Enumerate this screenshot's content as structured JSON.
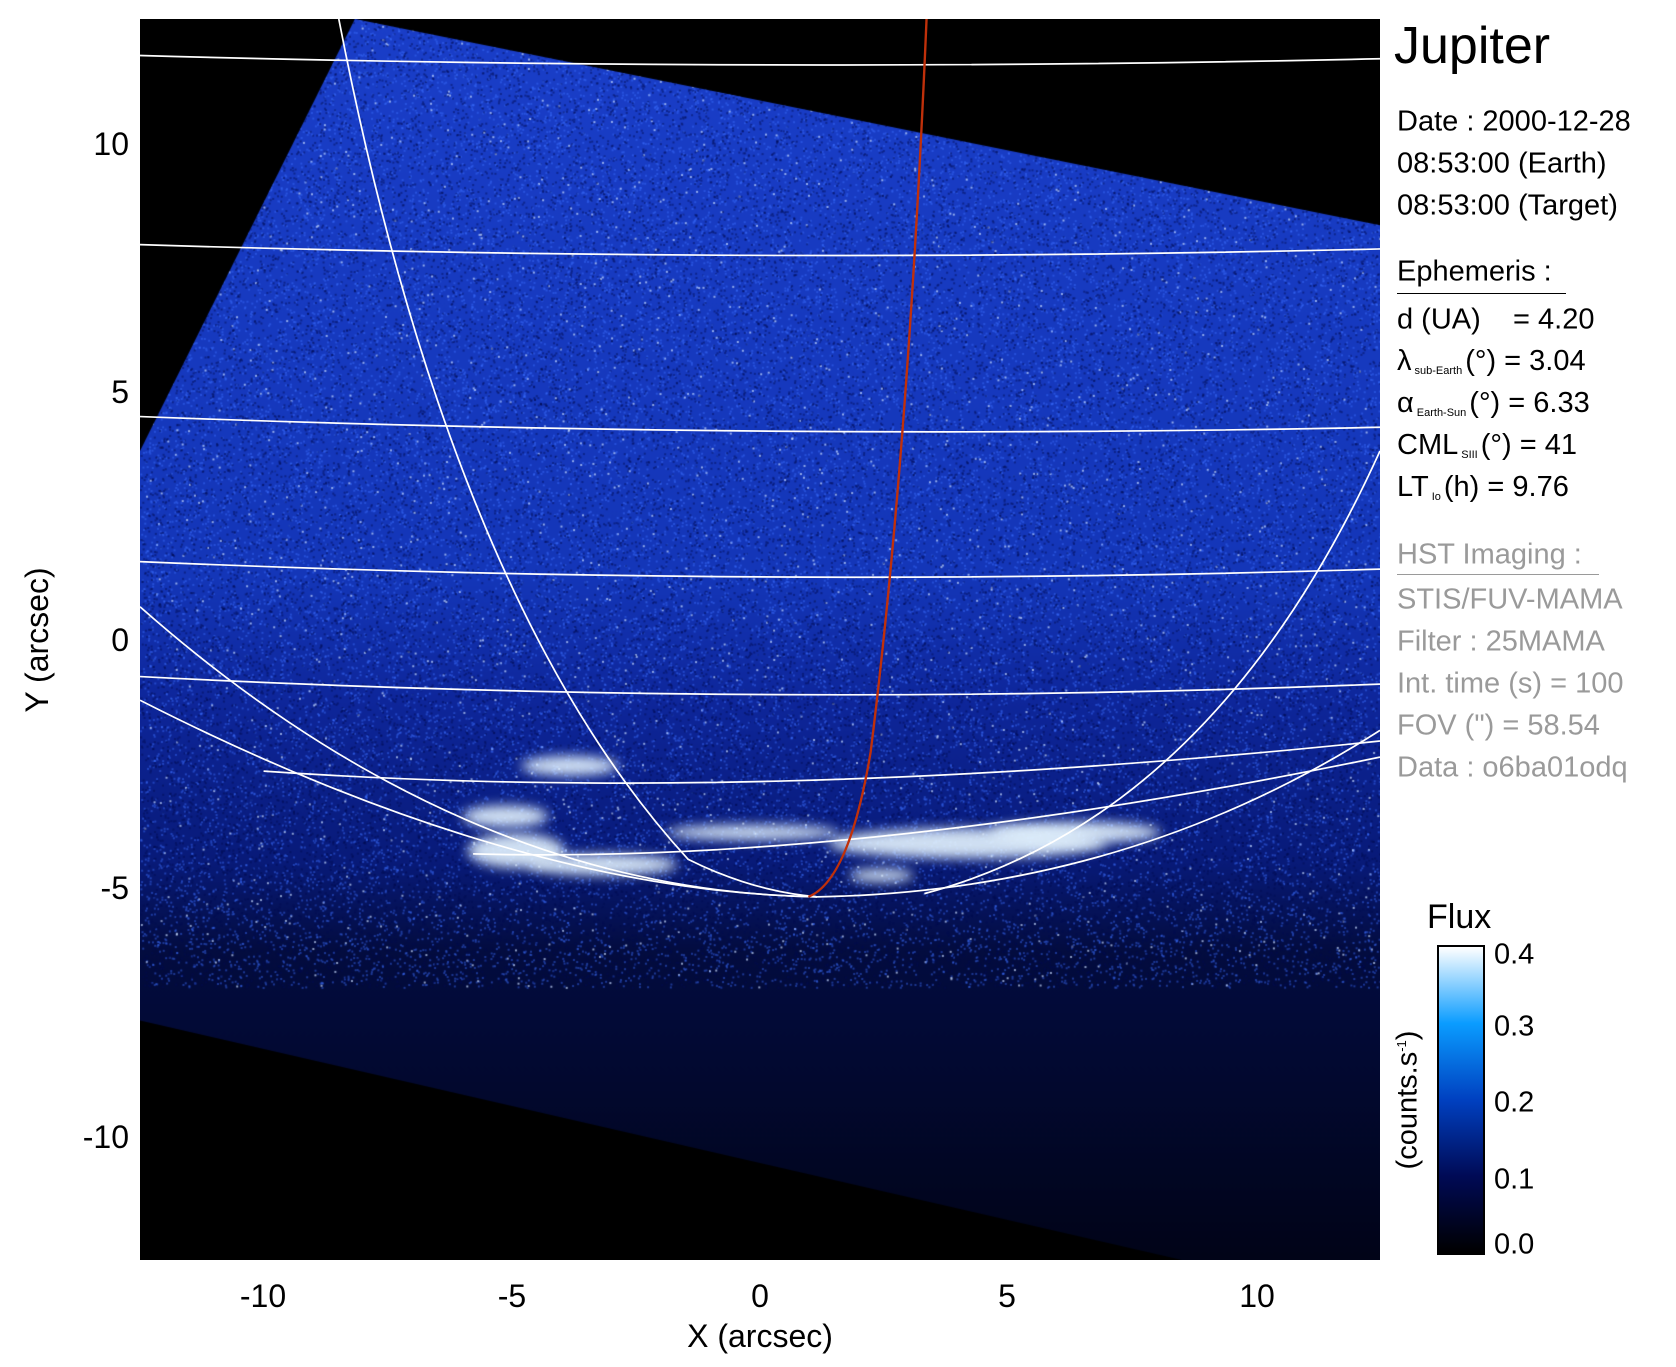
{
  "chart_data": {
    "type": "heatmap",
    "title": "Jupiter",
    "xlabel": "X (arcsec)",
    "ylabel": "Y (arcsec)",
    "xlim": [
      -12.5,
      12.5
    ],
    "ylim": [
      -12.5,
      12.5
    ],
    "xticks": [
      "-10",
      "-5",
      "0",
      "5",
      "10"
    ],
    "yticks": [
      "10",
      "5",
      "0",
      "-5",
      "-10"
    ],
    "grid": "planetographic latitude/longitude grid overlay (white)",
    "highlight_line_color": "#c0300a",
    "colorbar": {
      "title": "Flux",
      "label": "(counts.s",
      "label_sup": "-1",
      "label_close": ")",
      "range": [
        0.0,
        0.4
      ],
      "ticks": [
        "0.4",
        "0.3",
        "0.2",
        "0.1",
        "0.0"
      ],
      "colors": [
        "#000000",
        "#000a55",
        "#0040c0",
        "#0a9cff",
        "#ffffff"
      ]
    }
  },
  "info": {
    "date": "Date : 2000-12-28",
    "time_earth": "08:53:00 (Earth)",
    "time_target": "08:53:00 (Target)",
    "ephemeris_heading": "Ephemeris :",
    "d": {
      "label": "d (UA)",
      "value": "= 4.20"
    },
    "lambda": {
      "symbol": "λ",
      "sub": "sub-Earth",
      "rest": "(°) = 3.04"
    },
    "alpha": {
      "symbol": "α",
      "sub": "Earth-Sun",
      "rest": "(°) = 6.33"
    },
    "cml": {
      "symbol": "CML",
      "sub": "SIII",
      "rest": "(°) = 41"
    },
    "lt": {
      "symbol": "LT",
      "sub": "Io",
      "rest": "(h) = 9.76"
    },
    "hst_heading": "HST Imaging :",
    "instrument": "STIS/FUV-MAMA",
    "filter": "Filter : 25MAMA",
    "int_time": "Int. time (s) = 100",
    "fov": "FOV (\") = 58.54",
    "dataset": "Data : o6ba01odq"
  }
}
